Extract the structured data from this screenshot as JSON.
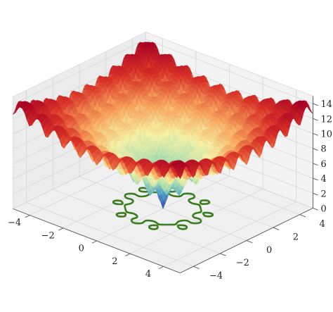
{
  "chart_data": {
    "type": "surface3d",
    "x_ticks": [
      -4,
      -2,
      0,
      2,
      4
    ],
    "y_ticks": [
      -4,
      -2,
      0,
      2,
      4
    ],
    "z_ticks": [
      0,
      2,
      4,
      6,
      8,
      10,
      12,
      14
    ],
    "xlim": [
      -5,
      5
    ],
    "ylim": [
      -5,
      5
    ],
    "zlim": [
      0,
      15
    ],
    "surface": {
      "function": "ackley",
      "x_range": [
        -5,
        5
      ],
      "y_range": [
        -5,
        5
      ],
      "min_value": 0,
      "max_value": 14.3,
      "colormap": "Spectral_r",
      "colormap_colors": [
        "#3f3fa8",
        "#4e9fc8",
        "#a9dcb0",
        "#f4f1a6",
        "#f7a35c",
        "#d73027",
        "#a50026"
      ]
    },
    "contour": {
      "color": "#3a7d1f",
      "plane": "z=0"
    },
    "grid": true,
    "background_panes": "#f0f0f0"
  }
}
